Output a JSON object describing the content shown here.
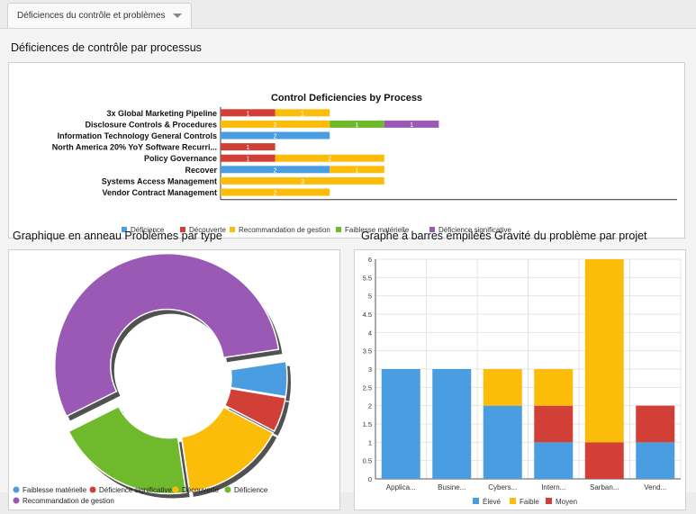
{
  "tab": {
    "label": "Déficiences du contrôle et problèmes"
  },
  "sections": {
    "deficiencies_title": "Déficiences de contrôle par processus",
    "donut_title": "Graphique en anneau Problèmes par type",
    "stacked_title": "Graphe à barres empilées Gravité du problème par projet"
  },
  "colors": {
    "blue": "#4a9de0",
    "red": "#d23f36",
    "yellow": "#fbbd0a",
    "green": "#6fba2c",
    "purple": "#9b59b6"
  },
  "chart_data": [
    {
      "type": "bar",
      "orientation": "horizontal",
      "stacked": true,
      "title": "Control Deficiencies by Process",
      "categories": [
        "3x Global Marketing Pipeline",
        "Disclosure Controls & Procedures",
        "Information Technology General Controls",
        "North America 20% YoY Software Recurri...",
        "Policy Governance",
        "Recover",
        "Systems Access Management",
        "Vendor Contract Management"
      ],
      "series": [
        {
          "name": "Déficience",
          "color": "#4a9de0",
          "values": [
            0,
            0,
            2,
            0,
            0,
            2,
            0,
            0
          ]
        },
        {
          "name": "Découverte",
          "color": "#d23f36",
          "values": [
            1,
            0,
            0,
            1,
            1,
            0,
            0,
            0
          ]
        },
        {
          "name": "Recommandation de gestion",
          "color": "#fbbd0a",
          "values": [
            1,
            2,
            0,
            0,
            2,
            1,
            3,
            2
          ]
        },
        {
          "name": "Faiblesse matérielle",
          "color": "#6fba2c",
          "values": [
            0,
            1,
            0,
            0,
            0,
            0,
            0,
            0
          ]
        },
        {
          "name": "Déficience significative",
          "color": "#9b59b6",
          "values": [
            0,
            1,
            0,
            0,
            0,
            0,
            0,
            0
          ]
        }
      ],
      "legend_position": "bottom",
      "grid": false
    },
    {
      "type": "pie",
      "donut": true,
      "title": "",
      "slices": [
        {
          "name": "Faiblesse matérielle",
          "value": 1,
          "color": "#4a9de0"
        },
        {
          "name": "Déficience significative",
          "value": 1,
          "color": "#d23f36"
        },
        {
          "name": "Découverte",
          "value": 3,
          "color": "#fbbd0a"
        },
        {
          "name": "Déficience",
          "value": 4,
          "color": "#6fba2c"
        },
        {
          "name": "Recommandation de gestion",
          "value": 11,
          "color": "#9b59b6"
        }
      ],
      "legend": [
        {
          "name": "Faiblesse matérielle",
          "color": "#4a9de0"
        },
        {
          "name": "Déficience significative",
          "color": "#d23f36"
        },
        {
          "name": "Découverte",
          "color": "#fbbd0a"
        },
        {
          "name": "Déficience",
          "color": "#6fba2c"
        },
        {
          "name": "Recommandation de gestion",
          "color": "#9b59b6"
        }
      ],
      "legend_position": "bottom"
    },
    {
      "type": "bar",
      "stacked": true,
      "title": "",
      "categories": [
        "Applica...",
        "Busine...",
        "Cybers...",
        "Intern...",
        "Sarban...",
        "Vend..."
      ],
      "series": [
        {
          "name": "Élevé",
          "color": "#4a9de0",
          "values": [
            3,
            3,
            2,
            1,
            0,
            1
          ]
        },
        {
          "name": "Moyen",
          "color": "#d23f36",
          "values": [
            0,
            0,
            0,
            1,
            1,
            1
          ]
        },
        {
          "name": "Faible",
          "color": "#fbbd0a",
          "values": [
            0,
            0,
            1,
            1,
            5,
            0
          ]
        }
      ],
      "legend": [
        {
          "name": "Élevé",
          "color": "#4a9de0"
        },
        {
          "name": "Faible",
          "color": "#fbbd0a"
        },
        {
          "name": "Moyen",
          "color": "#d23f36"
        }
      ],
      "ylim": [
        0,
        6
      ],
      "yticks": [
        "0",
        "0.5",
        "1",
        "1.5",
        "2",
        "2.5",
        "3",
        "3.5",
        "4",
        "4.5",
        "5",
        "5.5",
        "6"
      ],
      "grid": true,
      "legend_position": "bottom"
    }
  ]
}
